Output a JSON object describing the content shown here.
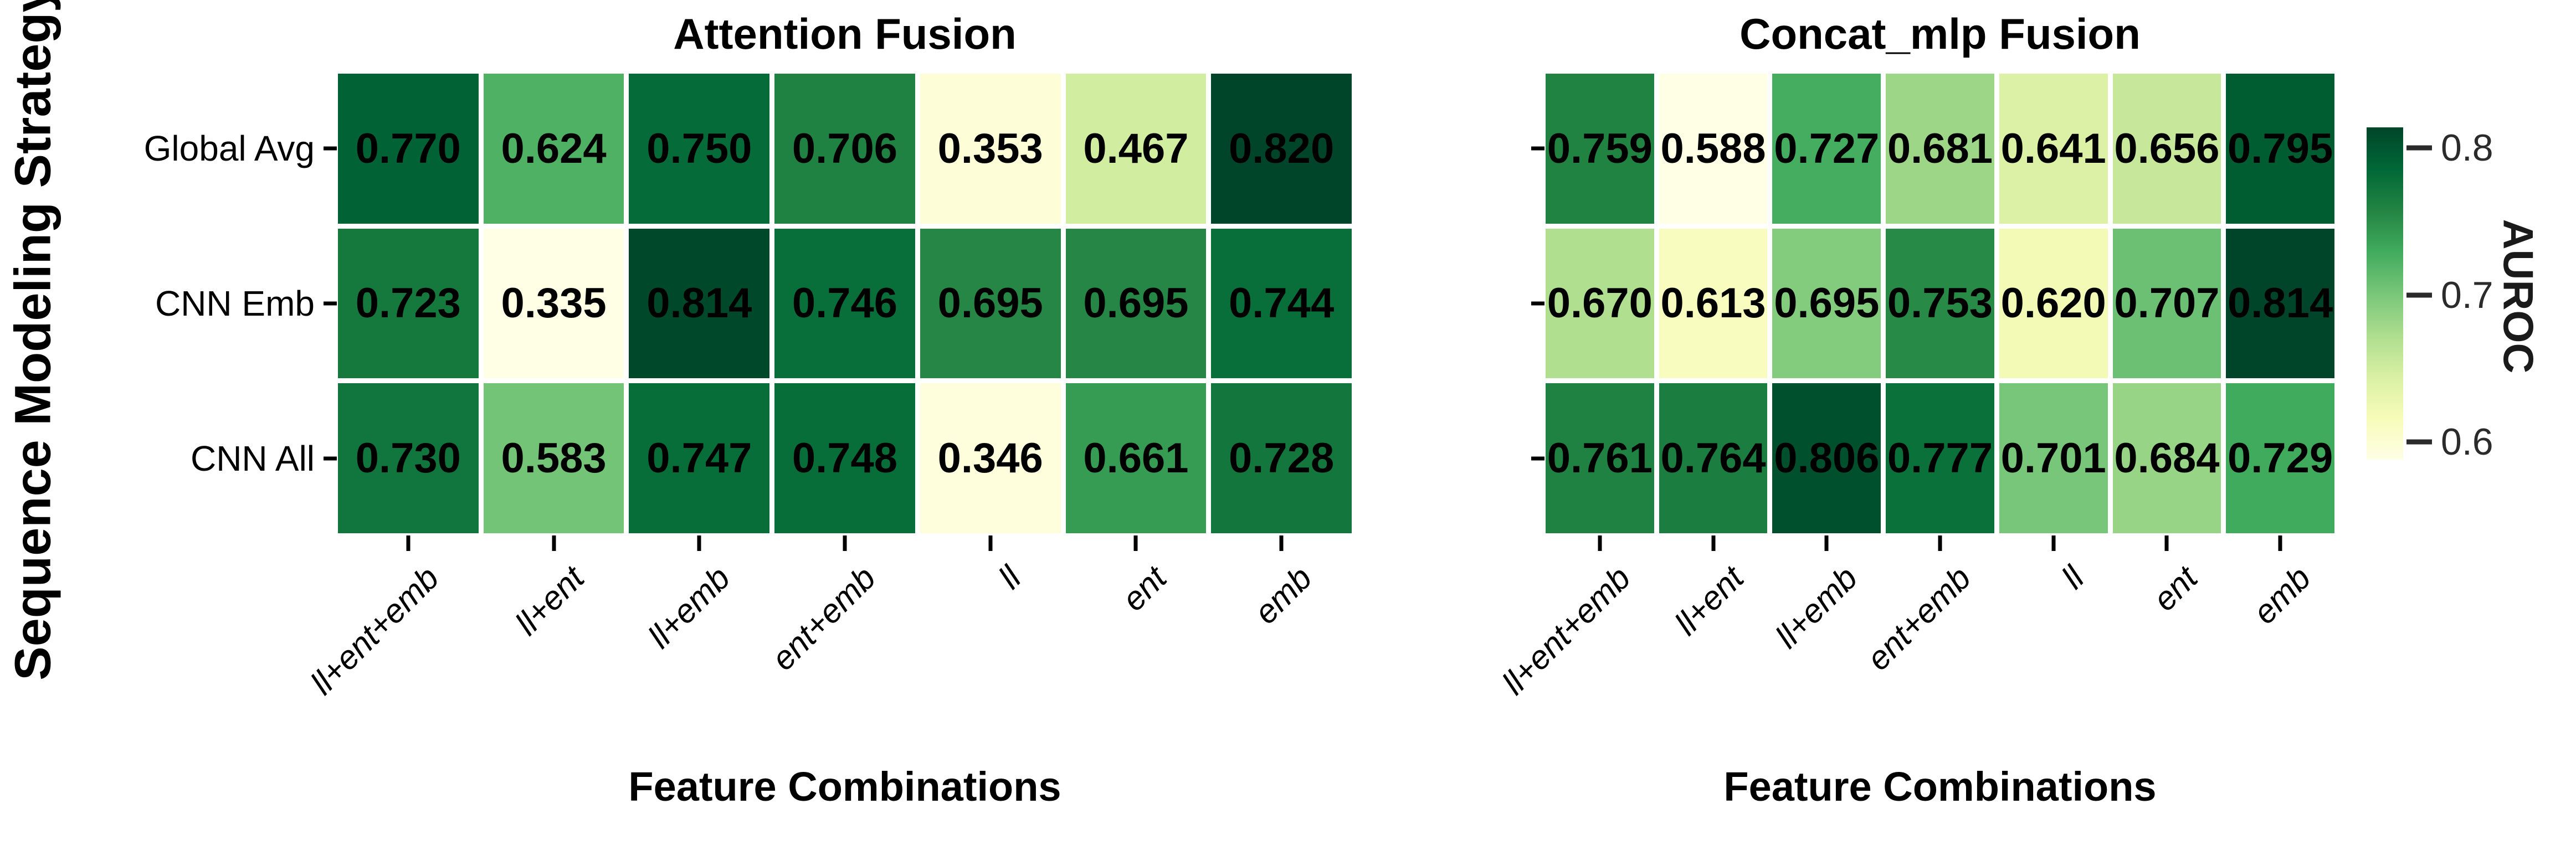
{
  "figure": {
    "ylabel": "Sequence Modeling Strategy",
    "background": "#ffffff",
    "text_color": "#000000",
    "colorbar": {
      "label": "AUROC",
      "ticks": [
        0.8,
        0.7,
        0.6
      ],
      "scale": {
        "vmin": 0.588,
        "vmax": 0.814
      },
      "gradient_anchors_top_to_bottom": [
        "#004529",
        "#006837",
        "#238443",
        "#41ab5d",
        "#78c679",
        "#addd8e",
        "#d9f0a3",
        "#f7fcb9",
        "#ffffe5"
      ]
    }
  },
  "chart_data": [
    {
      "type": "heatmap",
      "title": "Attention Fusion",
      "xlabel": "Feature Combinations",
      "ylabel": "Sequence Modeling Strategy",
      "x_categories": [
        "ll+ent+emb",
        "ll+ent",
        "ll+emb",
        "ent+emb",
        "ll",
        "ent",
        "emb"
      ],
      "y_categories": [
        "Global Avg",
        "CNN Emb",
        "CNN All"
      ],
      "values": [
        [
          0.77,
          0.624,
          0.75,
          0.706,
          0.353,
          0.467,
          0.82
        ],
        [
          0.723,
          0.335,
          0.814,
          0.746,
          0.695,
          0.695,
          0.744
        ],
        [
          0.73,
          0.583,
          0.747,
          0.748,
          0.346,
          0.661,
          0.728
        ]
      ],
      "value_format": "0.000",
      "colormap": "YlGn",
      "color_scale": {
        "vmin": 0.335,
        "vmax": 0.82
      },
      "show_row_labels": true,
      "annotation_color": "#000000"
    },
    {
      "type": "heatmap",
      "title": "Concat_mlp Fusion",
      "xlabel": "Feature Combinations",
      "ylabel": "Sequence Modeling Strategy",
      "x_categories": [
        "ll+ent+emb",
        "ll+ent",
        "ll+emb",
        "ent+emb",
        "ll",
        "ent",
        "emb"
      ],
      "y_categories": [
        "Global Avg",
        "CNN Emb",
        "CNN All"
      ],
      "values": [
        [
          0.759,
          0.588,
          0.727,
          0.681,
          0.641,
          0.656,
          0.795
        ],
        [
          0.67,
          0.613,
          0.695,
          0.753,
          0.62,
          0.707,
          0.814
        ],
        [
          0.761,
          0.764,
          0.806,
          0.777,
          0.701,
          0.684,
          0.729
        ]
      ],
      "value_format": "0.000",
      "colormap": "YlGn",
      "color_scale": {
        "vmin": 0.588,
        "vmax": 0.814
      },
      "show_row_labels": false,
      "annotation_color": "#000000"
    }
  ]
}
